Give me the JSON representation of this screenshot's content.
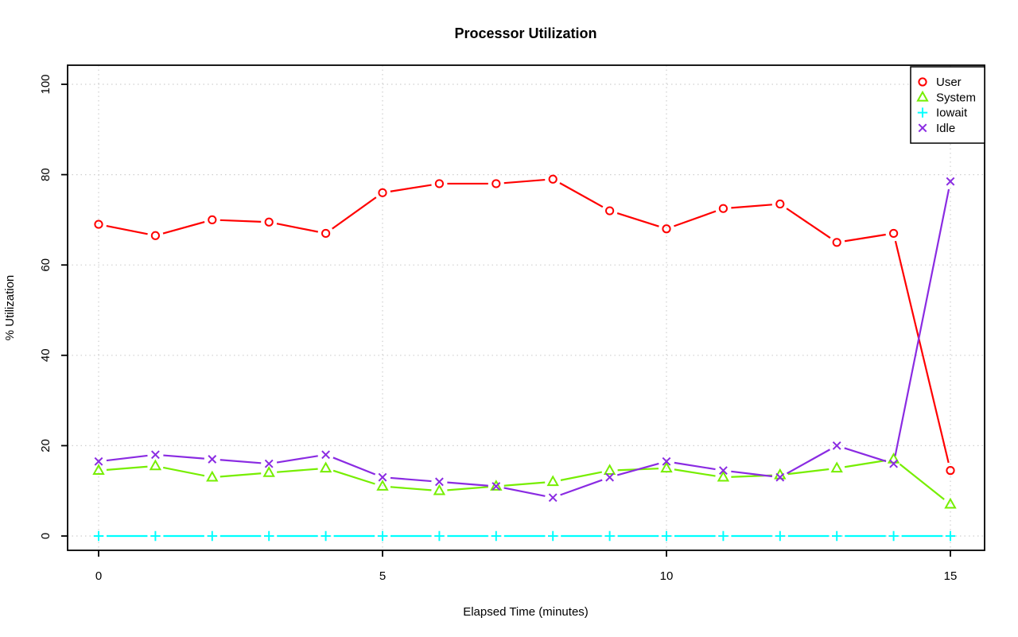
{
  "title": "Processor Utilization",
  "chart_data": {
    "type": "line",
    "title": "Processor Utilization",
    "xlabel": "Elapsed Time (minutes)",
    "ylabel": "% Utilization",
    "x": [
      0,
      1,
      2,
      3,
      4,
      5,
      6,
      7,
      8,
      9,
      10,
      11,
      12,
      13,
      14,
      15
    ],
    "series": [
      {
        "name": "User",
        "color": "#ff0000",
        "marker": "circle",
        "values": [
          69,
          66.5,
          70,
          69.5,
          67,
          76,
          78,
          78,
          79,
          72,
          68,
          72.5,
          73.5,
          65,
          67,
          14.5
        ]
      },
      {
        "name": "System",
        "color": "#76ee00",
        "marker": "triangle",
        "values": [
          14.5,
          15.5,
          13,
          14,
          15,
          11,
          10,
          11,
          12,
          14.5,
          15,
          13,
          13.5,
          15,
          17,
          7
        ]
      },
      {
        "name": "Iowait",
        "color": "#00ffff",
        "marker": "plus",
        "values": [
          0,
          0,
          0,
          0,
          0,
          0,
          0,
          0,
          0,
          0,
          0,
          0,
          0,
          0,
          0,
          0
        ]
      },
      {
        "name": "Idle",
        "color": "#8a2be2",
        "marker": "x",
        "values": [
          16.5,
          18,
          17,
          16,
          18,
          13,
          12,
          11,
          8.5,
          13,
          16.5,
          14.5,
          13,
          20,
          16,
          78.5
        ]
      }
    ],
    "xticks": [
      0,
      5,
      10,
      15
    ],
    "yticks": [
      0,
      20,
      40,
      60,
      80,
      100
    ],
    "xtick_labels": [
      "0",
      "5",
      "10",
      "15"
    ],
    "ytick_labels": [
      "0",
      "20",
      "40",
      "60",
      "80",
      "100"
    ],
    "xlim": [
      0,
      15
    ],
    "ylim": [
      0,
      100
    ],
    "grid": true,
    "gridline_color": "#cfcfcf",
    "legend_position": "top-right",
    "legend_entries": [
      "User",
      "System",
      "Iowait",
      "Idle"
    ]
  }
}
